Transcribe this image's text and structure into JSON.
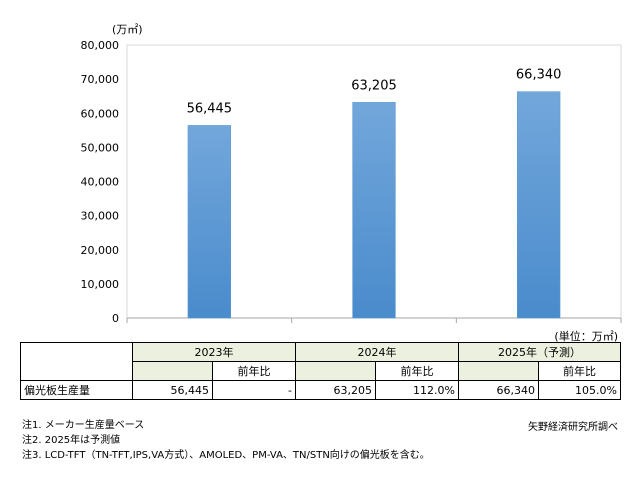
{
  "chart_data": {
    "type": "bar",
    "categories": [
      "2023年",
      "2024年",
      "2025年"
    ],
    "values": [
      56445,
      63205,
      66340
    ],
    "data_labels": [
      "56,445",
      "63,205",
      "66,340"
    ],
    "y_unit": "(万㎡)",
    "ylim": [
      0,
      80000
    ],
    "yticks": [
      0,
      10000,
      20000,
      30000,
      40000,
      50000,
      60000,
      70000,
      80000
    ],
    "ytick_labels": [
      "0",
      "10,000",
      "20,000",
      "30,000",
      "40,000",
      "50,000",
      "60,000",
      "70,000",
      "80,000"
    ],
    "grid": false,
    "bar_color": "#5b9bd5"
  },
  "table": {
    "unit_caption": "(単位：万㎡)",
    "years": [
      "2023年",
      "2024年",
      "2025年（予測）"
    ],
    "sub_header": "前年比",
    "row_label": "偏光板生産量",
    "cells": [
      {
        "value": "56,445",
        "ratio": "-"
      },
      {
        "value": "63,205",
        "ratio": "112.0%"
      },
      {
        "value": "66,340",
        "ratio": "105.0%"
      }
    ],
    "header_color": "#ebf1de"
  },
  "notes": [
    "注1. メーカー生産量ベース",
    "注2. 2025年は予測値",
    "注3. LCD-TFT（TN-TFT,IPS,VA方式）、AMOLED、PM-VA、TN/STN向けの偏光板を含む。"
  ],
  "source": "矢野経済研究所調べ"
}
